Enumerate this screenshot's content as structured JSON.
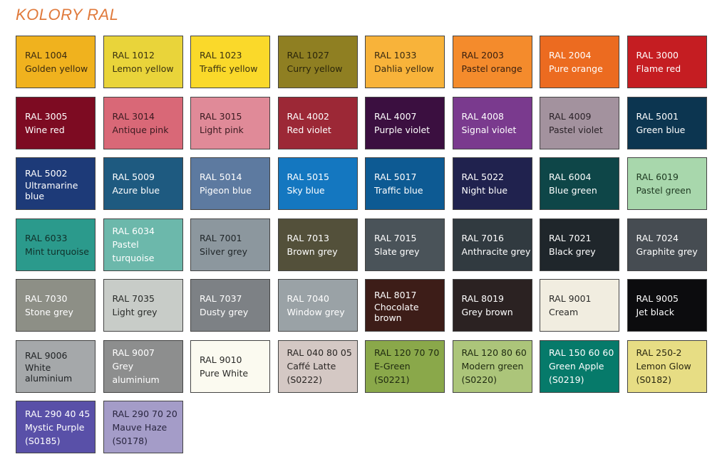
{
  "title": "KOLORY RAL",
  "swatches": [
    {
      "lines": [
        "RAL 1004",
        "Golden yellow"
      ],
      "color": "#f0b21e",
      "text": "#3a2a10"
    },
    {
      "lines": [
        "RAL 1012",
        "Lemon yellow"
      ],
      "color": "#e9d43a",
      "text": "#3a3210"
    },
    {
      "lines": [
        "RAL 1023",
        "Traffic yellow"
      ],
      "color": "#fad92a",
      "text": "#3a3210"
    },
    {
      "lines": [
        "RAL 1027",
        "Curry yellow"
      ],
      "color": "#8f7f22",
      "text": "#2a250a"
    },
    {
      "lines": [
        "RAL 1033",
        "Dahlia yellow"
      ],
      "color": "#f8b33a",
      "text": "#3a2a10"
    },
    {
      "lines": [
        "RAL 2003",
        "Pastel orange"
      ],
      "color": "#f48b2c",
      "text": "#3a2010"
    },
    {
      "lines": [
        "RAL 2004",
        "Pure orange"
      ],
      "color": "#ec6b20",
      "text": "#ffffff"
    },
    {
      "lines": [
        "RAL 3000",
        "Flame red"
      ],
      "color": "#c51d22",
      "text": "#ffffff"
    },
    {
      "lines": [
        "RAL 3005",
        "Wine red"
      ],
      "color": "#7d0b22",
      "text": "#ffffff"
    },
    {
      "lines": [
        "RAL 3014",
        "Antique pink"
      ],
      "color": "#d96877",
      "text": "#3a1a20"
    },
    {
      "lines": [
        "RAL 3015",
        "Light pink"
      ],
      "color": "#e08a98",
      "text": "#3a1a20"
    },
    {
      "lines": [
        "RAL 4002",
        "Red violet"
      ],
      "color": "#9c2836",
      "text": "#ffffff"
    },
    {
      "lines": [
        "RAL 4007",
        "Purple violet"
      ],
      "color": "#3b0f40",
      "text": "#ffffff"
    },
    {
      "lines": [
        "RAL 4008",
        "Signal violet"
      ],
      "color": "#7a3a8e",
      "text": "#ffffff"
    },
    {
      "lines": [
        "RAL 4009",
        "Pastel violet"
      ],
      "color": "#a3929e",
      "text": "#2a2228"
    },
    {
      "lines": [
        "RAL 5001",
        "Green blue"
      ],
      "color": "#0c3550",
      "text": "#ffffff"
    },
    {
      "lines": [
        "RAL 5002",
        "Ultramarine",
        "blue"
      ],
      "color": "#1d3a78",
      "text": "#ffffff"
    },
    {
      "lines": [
        "RAL 5009",
        "Azure blue"
      ],
      "color": "#1e5a80",
      "text": "#ffffff"
    },
    {
      "lines": [
        "RAL 5014",
        "Pigeon blue"
      ],
      "color": "#5d7aa0",
      "text": "#ffffff"
    },
    {
      "lines": [
        "RAL 5015",
        "Sky blue"
      ],
      "color": "#1477c0",
      "text": "#ffffff"
    },
    {
      "lines": [
        "RAL 5017",
        "Traffic blue"
      ],
      "color": "#0d5a93",
      "text": "#ffffff"
    },
    {
      "lines": [
        "RAL 5022",
        "Night blue"
      ],
      "color": "#20224e",
      "text": "#ffffff"
    },
    {
      "lines": [
        "RAL 6004",
        "Blue green"
      ],
      "color": "#0e4648",
      "text": "#ffffff"
    },
    {
      "lines": [
        "RAL 6019",
        "Pastel green"
      ],
      "color": "#a8d7ac",
      "text": "#1f3a22"
    },
    {
      "lines": [
        "RAL 6033",
        "Mint turquoise"
      ],
      "color": "#2b9a8c",
      "text": "#10302a"
    },
    {
      "lines": [
        "RAL 6034",
        "Pastel turquoise"
      ],
      "color": "#6cb8ab",
      "text": "#ffffff"
    },
    {
      "lines": [
        "RAL 7001",
        "Silver grey"
      ],
      "color": "#8c979e",
      "text": "#1f2528"
    },
    {
      "lines": [
        "RAL 7013",
        "Brown grey"
      ],
      "color": "#53503a",
      "text": "#ffffff"
    },
    {
      "lines": [
        "RAL 7015",
        "Slate grey"
      ],
      "color": "#4a5359",
      "text": "#ffffff"
    },
    {
      "lines": [
        "RAL 7016",
        "Anthracite grey"
      ],
      "color": "#313a40",
      "text": "#ffffff"
    },
    {
      "lines": [
        "RAL 7021",
        "Black grey"
      ],
      "color": "#1f262b",
      "text": "#ffffff"
    },
    {
      "lines": [
        "RAL 7024",
        "Graphite grey"
      ],
      "color": "#464c52",
      "text": "#ffffff"
    },
    {
      "lines": [
        "RAL 7030",
        "Stone grey"
      ],
      "color": "#8d8f86",
      "text": "#ffffff"
    },
    {
      "lines": [
        "RAL 7035",
        "Light grey"
      ],
      "color": "#c8ccc8",
      "text": "#2a2c2a"
    },
    {
      "lines": [
        "RAL 7037",
        "Dusty grey"
      ],
      "color": "#7d8185",
      "text": "#ffffff"
    },
    {
      "lines": [
        "RAL 7040",
        "Window grey"
      ],
      "color": "#9aa2a6",
      "text": "#ffffff"
    },
    {
      "lines": [
        "RAL 8017",
        "Chocolate",
        "brown"
      ],
      "color": "#3d1d18",
      "text": "#ffffff"
    },
    {
      "lines": [
        "RAL 8019",
        "Grey brown"
      ],
      "color": "#2b2222",
      "text": "#ffffff"
    },
    {
      "lines": [
        "RAL 9001",
        "Cream"
      ],
      "color": "#f1ede0",
      "text": "#2a2a28"
    },
    {
      "lines": [
        "RAL 9005",
        "Jet black"
      ],
      "color": "#0c0c0e",
      "text": "#ffffff"
    },
    {
      "lines": [
        "RAL 9006",
        "White",
        "aluminium"
      ],
      "color": "#a5a8aa",
      "text": "#1f2224"
    },
    {
      "lines": [
        "RAL 9007",
        "Grey aluminium"
      ],
      "color": "#8d8e8e",
      "text": "#ffffff"
    },
    {
      "lines": [
        "RAL 9010",
        "Pure White"
      ],
      "color": "#fbfaf0",
      "text": "#2a2a28"
    },
    {
      "lines": [
        "RAL 040 80 05",
        "Caffé Latte",
        "(S0222)"
      ],
      "color": "#d4c8c4",
      "text": "#2a2624"
    },
    {
      "lines": [
        "RAL 120 70 70",
        "E-Green",
        "(S0221)"
      ],
      "color": "#8aa84a",
      "text": "#1f2a10"
    },
    {
      "lines": [
        "RAL 120 80 60",
        "Modern green",
        "(S0220)"
      ],
      "color": "#acc57a",
      "text": "#1f2a10"
    },
    {
      "lines": [
        "RAL 150 60 60",
        "Green Apple",
        "(S0219)"
      ],
      "color": "#067a6a",
      "text": "#ffffff"
    },
    {
      "lines": [
        "RAL 250-2",
        "Lemon Glow",
        "(S0182)"
      ],
      "color": "#e7dd84",
      "text": "#2a2810"
    },
    {
      "lines": [
        "RAL 290 40 45",
        "Mystic Purple",
        "(S0185)"
      ],
      "color": "#5950a8",
      "text": "#ffffff"
    },
    {
      "lines": [
        "RAL 290 70 20",
        "Mauve Haze",
        "(S0178)"
      ],
      "color": "#a49cc8",
      "text": "#2a2640"
    }
  ]
}
